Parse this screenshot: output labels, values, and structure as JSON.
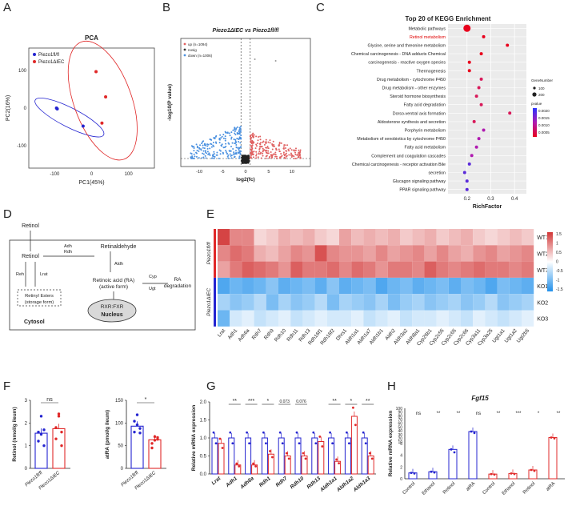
{
  "panel_labels": [
    "A",
    "B",
    "C",
    "D",
    "E",
    "F",
    "G",
    "H"
  ],
  "pca": {
    "title": "PCA",
    "xlabel": "PC1(45%)",
    "ylabel": "PC2(16%)",
    "xticks": [
      "-100",
      "0",
      "100"
    ],
    "yticks": [
      "100",
      "0",
      "-100"
    ],
    "legend": [
      "Piezo1fl/fl",
      "Piezo1ΔIEC"
    ],
    "colors": {
      "wt": "#2b2bbf",
      "ko": "#e03030"
    }
  },
  "volcano": {
    "title": "Piezo1ΔIEC vs Piezo1fl/fl",
    "xlabel": "log2(fc)",
    "ylabel": "-log10(P value)",
    "xticks": [
      "-10",
      "-5",
      "0",
      "5",
      "10"
    ],
    "legend": [
      "up (n=1094)",
      "nosig",
      "down (n=1006)"
    ]
  },
  "kegg": {
    "title": "Top 20 of KEGG Enrichment",
    "xlabel": "RichFactor",
    "xticks": [
      "0.2",
      "0.3",
      "0.4"
    ],
    "size_legend_title": "GeneNumber",
    "size_legend": [
      "100",
      "200"
    ],
    "p_legend_title": "pvalue",
    "p_legend": [
      "0.0020",
      "0.0015",
      "0.0010",
      "0.0005"
    ]
  },
  "diagram": {
    "retinol_top": "Retinol",
    "retinol": "Retinol",
    "adh_rdh": [
      "Adh",
      "Rdh"
    ],
    "retinaldehyde": "Retinaldehyde",
    "aldh": "Aldh",
    "ra": [
      "Retinoic acid (RA)",
      "(active form)"
    ],
    "cyp_ugt": [
      "Cyp",
      "Ugt"
    ],
    "ra_deg": [
      "RA",
      "degradation"
    ],
    "reh": "Reh",
    "lrat": "Lrat",
    "esters": [
      "Retinyl Esters",
      "(storage form)"
    ],
    "rxr": "RXR:FXR",
    "nucleus": "Nucleus",
    "cytosol": "Cytosol"
  },
  "heatmap": {
    "row_labels": [
      "WT1",
      "WT2",
      "WT3",
      "KO1",
      "KO2",
      "KO3"
    ],
    "group_labels": [
      "Piezo1fl/fl",
      "Piezo1ΔIEC"
    ],
    "cols": [
      "Lrat",
      "Adh1",
      "Adh6a",
      "Rdh7",
      "Rdh9",
      "Rdh10",
      "Rdh11",
      "Rdh13",
      "Rdh16f1",
      "Rdh16f2",
      "Dhrs1",
      "Aldh1a1",
      "Aldh1a7",
      "Aldh1b1",
      "Aldh2",
      "Aldh3a2",
      "Aldh8a1",
      "Cyp26b1",
      "Cyp2c55",
      "Cyp2c65",
      "Cyp2c66",
      "Cyp3a11",
      "Cyp3a25",
      "Ugt1a1",
      "Ugt1a2",
      "Ugt2b5"
    ],
    "scale": [
      "1.5",
      "1",
      "0.5",
      "0",
      "-0.5",
      "-1",
      "-1.5"
    ],
    "values": [
      [
        1.4,
        0.9,
        0.9,
        0.3,
        0.4,
        0.6,
        0.5,
        0.6,
        0.4,
        0.3,
        0.7,
        0.5,
        0.6,
        0.5,
        0.6,
        0.4,
        0.5,
        0.6,
        0.4,
        0.5,
        0.6,
        0.4,
        0.3,
        0.4,
        0.5,
        0.4
      ],
      [
        0.9,
        1.1,
        1.0,
        0.6,
        0.5,
        0.7,
        0.9,
        0.8,
        1.3,
        0.9,
        0.8,
        0.8,
        0.7,
        0.9,
        0.7,
        0.8,
        0.9,
        0.7,
        0.9,
        0.7,
        0.6,
        0.8,
        0.9,
        0.7,
        0.8,
        0.9
      ],
      [
        0.7,
        1.0,
        1.2,
        1.1,
        1.0,
        0.8,
        1.2,
        1.0,
        1.0,
        1.1,
        0.9,
        1.1,
        1.0,
        0.8,
        1.0,
        1.0,
        0.9,
        1.2,
        1.0,
        0.9,
        1.0,
        1.1,
        1.0,
        1.0,
        0.9,
        1.0
      ],
      [
        -1.2,
        -1.0,
        -1.1,
        -1.0,
        -0.8,
        -1.1,
        -1.0,
        -0.9,
        -1.1,
        -0.8,
        -1.1,
        -1.0,
        -0.9,
        -1.2,
        -1.0,
        -0.9,
        -1.1,
        -1.0,
        -0.9,
        -1.1,
        -0.9,
        -1.0,
        -1.2,
        -0.9,
        -1.0,
        -1.1
      ],
      [
        -0.6,
        -0.8,
        -0.7,
        -0.5,
        -0.9,
        -0.6,
        -0.8,
        -0.7,
        -0.5,
        -0.9,
        -0.6,
        -0.7,
        -0.8,
        -0.6,
        -0.9,
        -0.7,
        -0.6,
        -0.8,
        -0.7,
        -0.6,
        -0.8,
        -0.7,
        -0.5,
        -0.8,
        -0.7,
        -0.6
      ],
      [
        -1.0,
        -0.3,
        -0.2,
        -0.4,
        -0.3,
        -0.2,
        -0.4,
        -0.3,
        -0.2,
        -0.3,
        -0.3,
        -0.2,
        -0.4,
        -0.3,
        -0.2,
        -0.4,
        -0.3,
        -0.3,
        -0.2,
        -0.3,
        -0.4,
        -0.2,
        -0.3,
        -0.4,
        -0.3,
        -0.2
      ]
    ]
  },
  "chart_data": [
    {
      "panel": "A",
      "type": "scatter",
      "title": "PCA",
      "xlabel": "PC1(45%)",
      "ylabel": "PC2(16%)",
      "series": [
        {
          "name": "Piezo1fl/fl",
          "points": [
            [
              -95,
              0
            ],
            [
              -93,
              -2
            ],
            [
              -23,
              -48
            ]
          ]
        },
        {
          "name": "Piezo1ΔIEC",
          "points": [
            [
              12,
              97
            ],
            [
              38,
              30
            ],
            [
              28,
              -40
            ]
          ]
        }
      ],
      "xlim": [
        -170,
        170
      ],
      "ylim": [
        -160,
        160
      ]
    },
    {
      "panel": "C",
      "type": "scatter",
      "title": "Top 20 of KEGG Enrichment",
      "xlabel": "RichFactor",
      "categories": [
        "Metabolic pathways",
        "Retinol metabolism",
        "Glycine, serine and threonine metabolism",
        "Chemical carcinogenesis - DNA adducts Chemical",
        "carcinogenesis - reactive oxygen species",
        "Thermogenesis",
        "Drug metabolism - cytochrome P450",
        "Drug metabolism - other enzymes",
        "Steroid hormone biosynthesis",
        "Fatty acid degradation",
        "Dorso-ventral axis formation",
        "Aldosterone synthesis and secretion",
        "Porphyrin metabolism",
        "Metabolism of xenobiotics by cytochrome P450",
        "Fatty acid metabolism",
        "Complement and coagulation cascades",
        "Chemical carcinogenesis - receptor activation Bile",
        "secretion",
        "Glucagon signaling pathway",
        "PPAR signaling pathway"
      ],
      "richfactor": [
        0.2,
        0.27,
        0.37,
        0.26,
        0.21,
        0.21,
        0.26,
        0.25,
        0.24,
        0.26,
        0.38,
        0.23,
        0.27,
        0.25,
        0.24,
        0.22,
        0.21,
        0.19,
        0.2,
        0.2
      ],
      "series_colors": {
        "high_sig": "#e8001c",
        "low_sig": "#5b2bd9"
      },
      "xlim": [
        0.12,
        0.45
      ]
    },
    {
      "panel": "F-left",
      "type": "bar",
      "ylabel": "Retinol (nmol/g ileum)",
      "categories": [
        "Piezo1fl/fl",
        "Piezo1ΔIEC"
      ],
      "values": [
        1.55,
        1.75
      ],
      "ylim": [
        0,
        3
      ],
      "yticks": [
        "0",
        "1",
        "2",
        "3"
      ],
      "annotation": "ns"
    },
    {
      "panel": "F-right",
      "type": "bar",
      "ylabel": "atRA (pmol/g ileum)",
      "categories": [
        "Piezo1fl/fl",
        "Piezo1ΔIEC"
      ],
      "values": [
        93,
        63
      ],
      "ylim": [
        0,
        150
      ],
      "yticks": [
        "0",
        "50",
        "100",
        "150"
      ],
      "annotation": "*"
    },
    {
      "panel": "G",
      "type": "bar",
      "ylabel": "Relative mRNA expression",
      "categories": [
        "Lrat",
        "Adh1",
        "Adh6a",
        "Rdh1",
        "Rdh7",
        "Rdh10",
        "Rdh13",
        "Aldh1a1",
        "Aldh1a2",
        "Aldh1a3"
      ],
      "series": [
        {
          "name": "Piezo1fl/fl",
          "values": [
            1.0,
            1.0,
            1.0,
            1.0,
            1.0,
            1.0,
            1.0,
            1.0,
            1.0,
            1.0
          ]
        },
        {
          "name": "Piezo1ΔIEC",
          "values": [
            0.85,
            0.25,
            0.25,
            0.55,
            0.5,
            0.5,
            0.9,
            0.35,
            1.6,
            0.5
          ]
        }
      ],
      "annotations": [
        "",
        "**",
        "***",
        "*",
        "0.073",
        "0.076",
        "",
        "**",
        "*",
        "**"
      ],
      "ylim": [
        0,
        2.0
      ],
      "yticks": [
        "0.0",
        "0.5",
        "1.0",
        "1.5",
        "2.0"
      ]
    },
    {
      "panel": "H",
      "type": "bar",
      "title": "Fgf15",
      "ylabel": "Relative mRNA expression",
      "categories": [
        "Control",
        "Ethanol",
        "Retinol",
        "atRA",
        "Control",
        "Ethanol",
        "Retinol",
        "atRA"
      ],
      "series": [
        {
          "name": "Piezo1fl/fl",
          "values": [
            1.0,
            1.2,
            5.0,
            38,
            0,
            0,
            0,
            0
          ]
        },
        {
          "name": "Piezo1ΔIEC",
          "values": [
            0,
            0,
            0,
            0,
            0.8,
            0.9,
            1.5,
            22
          ]
        }
      ],
      "annotations": [
        "ns",
        "**",
        "**",
        "ns",
        "**",
        "***",
        "*",
        "**"
      ],
      "yticks": [
        "0",
        "2",
        "4",
        "6",
        "10",
        "20",
        "30",
        "40",
        "50",
        "60",
        "70",
        "80",
        "90",
        "100"
      ]
    }
  ]
}
